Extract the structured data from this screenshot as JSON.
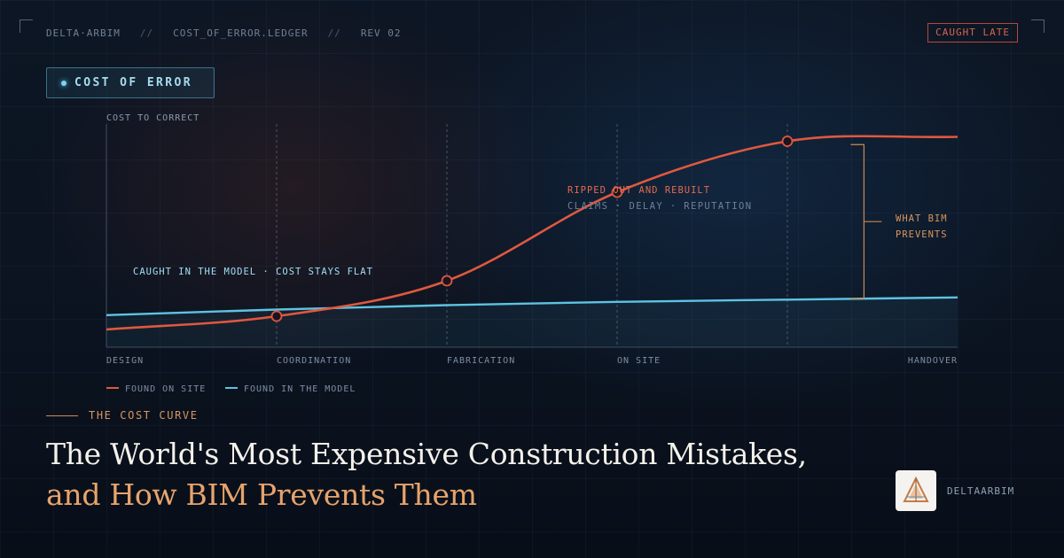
{
  "header": {
    "items": [
      "DELTA·ARBIM",
      "COST_OF_ERROR.LEDGER",
      "REV 02"
    ],
    "separator": "//",
    "badge": "CAUGHT LATE"
  },
  "pill_label": "COST OF ERROR",
  "chart_data": {
    "type": "line",
    "ylabel": "COST TO CORRECT",
    "categories": [
      "DESIGN",
      "COORDINATION",
      "FABRICATION",
      "ON SITE",
      "",
      "HANDOVER"
    ],
    "x": [
      0,
      1,
      2,
      3,
      4,
      5
    ],
    "ylim": [
      0,
      100
    ],
    "series": [
      {
        "name": "FOUND ON SITE",
        "color": "#e0583f",
        "values": [
          8,
          14,
          30,
          70,
          93,
          95
        ],
        "markers": [
          1,
          2,
          3,
          4
        ]
      },
      {
        "name": "FOUND IN THE MODEL",
        "color": "#5ec3e2",
        "values": [
          14.5,
          17,
          19,
          20.5,
          21.5,
          22.5
        ],
        "markers": []
      }
    ],
    "annotations": {
      "model_note": "CAUGHT IN THE MODEL · COST STAYS FLAT",
      "site_note_title": "RIPPED OUT AND REBUILT",
      "site_note_sub": "CLAIMS · DELAY · REPUTATION",
      "bracket_label": [
        "WHAT BIM",
        "PREVENTS"
      ]
    },
    "legend_position": "bottom-left"
  },
  "footer": {
    "eyebrow": "THE COST CURVE",
    "title_line1": "The World's Most Expensive Construction Mistakes,",
    "title_line2": "and How BIM Prevents Them",
    "brand": "DELTAARBIM"
  },
  "colors": {
    "site": "#e0583f",
    "model": "#5ec3e2",
    "accent": "#d9945f",
    "background": "#0b1320"
  }
}
